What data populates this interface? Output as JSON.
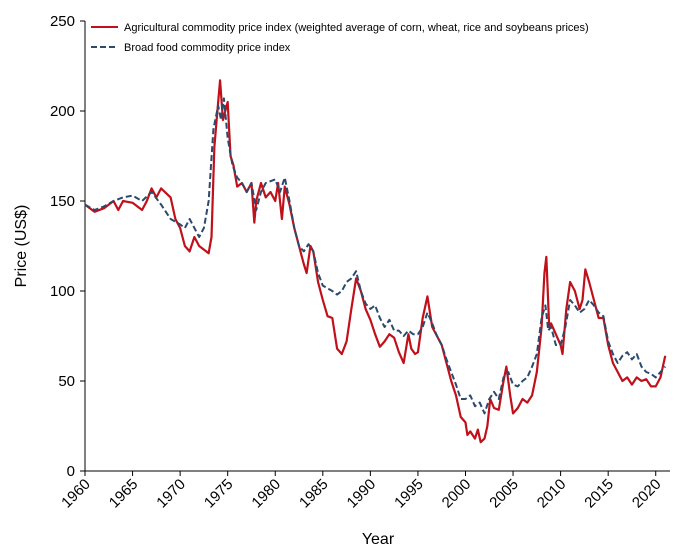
{
  "chart_data": {
    "type": "line",
    "xlabel": "Year",
    "ylabel": "Price (US$)",
    "xlim": [
      1960,
      2021.5
    ],
    "ylim": [
      0,
      250
    ],
    "xticks": [
      1960,
      1965,
      1970,
      1975,
      1980,
      1985,
      1990,
      1995,
      2000,
      2005,
      2010,
      2015,
      2020
    ],
    "yticks": [
      0,
      50,
      100,
      150,
      200,
      250
    ],
    "legend": "upper left",
    "series": [
      {
        "name": "Agricultural commodity price index (weighted average of corn, wheat, rice and soybeans prices)",
        "color": "#c0111b",
        "dash": "solid",
        "x": [
          1960,
          1961,
          1962,
          1963,
          1963.5,
          1964,
          1965,
          1966,
          1966.5,
          1967,
          1967.5,
          1968,
          1969,
          1969.5,
          1970,
          1970.5,
          1971,
          1971.5,
          1972,
          1972.5,
          1973,
          1973.3,
          1973.6,
          1974,
          1974.2,
          1974.5,
          1975,
          1975.3,
          1975.6,
          1976,
          1976.5,
          1977,
          1977.5,
          1977.8,
          1978,
          1978.5,
          1979,
          1979.5,
          1980,
          1980.3,
          1980.7,
          1981,
          1981.5,
          1982,
          1982.5,
          1983,
          1983.3,
          1983.7,
          1984,
          1984.5,
          1985,
          1985.5,
          1986,
          1986.5,
          1987,
          1987.5,
          1988,
          1988.5,
          1989,
          1989.5,
          1990,
          1990.5,
          1991,
          1991.5,
          1992,
          1992.5,
          1993,
          1993.5,
          1994,
          1994.3,
          1994.7,
          1995,
          1995.5,
          1996,
          1996.5,
          1997,
          1997.5,
          1998,
          1998.5,
          1999,
          1999.5,
          2000,
          2000.2,
          2000.5,
          2001,
          2001.3,
          2001.6,
          2002,
          2002.3,
          2002.6,
          2003,
          2003.5,
          2004,
          2004.3,
          2004.7,
          2005,
          2005.5,
          2006,
          2006.5,
          2007,
          2007.5,
          2008,
          2008.3,
          2008.5,
          2008.8,
          2009,
          2009.5,
          2010,
          2010.2,
          2010.6,
          2011,
          2011.5,
          2012,
          2012.3,
          2012.6,
          2013,
          2013.5,
          2014,
          2014.5,
          2015,
          2015.5,
          2016,
          2016.5,
          2017,
          2017.5,
          2018,
          2018.5,
          2019,
          2019.5,
          2020,
          2020.5,
          2021
        ],
        "values": [
          148,
          144,
          146,
          150,
          145,
          150,
          149,
          145,
          150,
          157,
          152,
          157,
          152,
          140,
          135,
          125,
          122,
          130,
          125,
          123,
          121,
          130,
          180,
          205,
          217,
          195,
          205,
          175,
          170,
          158,
          160,
          155,
          160,
          138,
          150,
          160,
          152,
          155,
          150,
          160,
          140,
          158,
          148,
          135,
          125,
          115,
          110,
          125,
          122,
          105,
          95,
          86,
          85,
          68,
          65,
          72,
          90,
          107,
          100,
          90,
          84,
          76,
          69,
          72,
          76,
          74,
          66,
          60,
          76,
          68,
          65,
          66,
          85,
          97,
          80,
          75,
          70,
          60,
          50,
          42,
          30,
          27,
          20,
          22,
          18,
          23,
          16,
          18,
          25,
          40,
          35,
          34,
          50,
          58,
          42,
          32,
          35,
          40,
          38,
          42,
          55,
          80,
          110,
          119,
          80,
          82,
          76,
          70,
          65,
          90,
          105,
          100,
          90,
          95,
          112,
          105,
          95,
          85,
          85,
          70,
          60,
          55,
          50,
          52,
          48,
          52,
          50,
          51,
          47,
          47,
          52,
          64
        ]
      },
      {
        "name": "Broad food commodity price index",
        "color": "#2c4a6e",
        "dash": "dashed",
        "x": [
          1960,
          1961,
          1962,
          1963,
          1964,
          1965,
          1966,
          1967,
          1968,
          1969,
          1970,
          1970.5,
          1971,
          1971.5,
          1972,
          1972.5,
          1973,
          1973.5,
          1974,
          1974.3,
          1974.6,
          1975,
          1975.5,
          1976,
          1976.5,
          1977,
          1977.5,
          1978,
          1978.5,
          1979,
          1980,
          1980.5,
          1981,
          1981.5,
          1982,
          1982.5,
          1983,
          1983.5,
          1984,
          1984.5,
          1985,
          1986,
          1986.5,
          1987,
          1987.5,
          1988,
          1988.5,
          1989,
          1989.5,
          1990,
          1990.5,
          1991,
          1991.5,
          1992,
          1992.5,
          1993,
          1993.5,
          1994,
          1994.5,
          1995,
          1995.5,
          1996,
          1996.5,
          1997,
          1997.5,
          1998,
          1998.5,
          1999,
          1999.5,
          2000,
          2000.5,
          2001,
          2001.5,
          2002,
          2002.5,
          2003,
          2003.5,
          2004,
          2004.5,
          2005,
          2005.5,
          2006,
          2006.5,
          2007,
          2007.5,
          2008,
          2008.4,
          2008.7,
          2009,
          2009.5,
          2010,
          2010.5,
          2011,
          2011.5,
          2012,
          2012.5,
          2013,
          2013.5,
          2014,
          2014.5,
          2015,
          2015.5,
          2016,
          2016.5,
          2017,
          2017.5,
          2018,
          2018.5,
          2019,
          2019.5,
          2020,
          2020.5,
          2021
        ],
        "values": [
          148,
          145,
          147,
          150,
          152,
          153,
          150,
          155,
          148,
          140,
          137,
          135,
          140,
          135,
          130,
          135,
          150,
          190,
          203,
          195,
          207,
          185,
          170,
          163,
          160,
          155,
          160,
          145,
          155,
          160,
          162,
          155,
          163,
          150,
          135,
          125,
          122,
          126,
          122,
          110,
          103,
          100,
          98,
          100,
          105,
          107,
          111,
          100,
          93,
          90,
          92,
          85,
          80,
          84,
          78,
          78,
          75,
          78,
          76,
          76,
          80,
          88,
          82,
          75,
          70,
          62,
          55,
          48,
          40,
          40,
          42,
          36,
          38,
          32,
          40,
          44,
          40,
          52,
          55,
          48,
          47,
          50,
          52,
          58,
          65,
          85,
          92,
          78,
          80,
          70,
          70,
          80,
          95,
          92,
          88,
          90,
          95,
          92,
          88,
          86,
          72,
          65,
          60,
          64,
          66,
          62,
          65,
          58,
          55,
          54,
          52,
          55,
          58
        ]
      }
    ]
  }
}
